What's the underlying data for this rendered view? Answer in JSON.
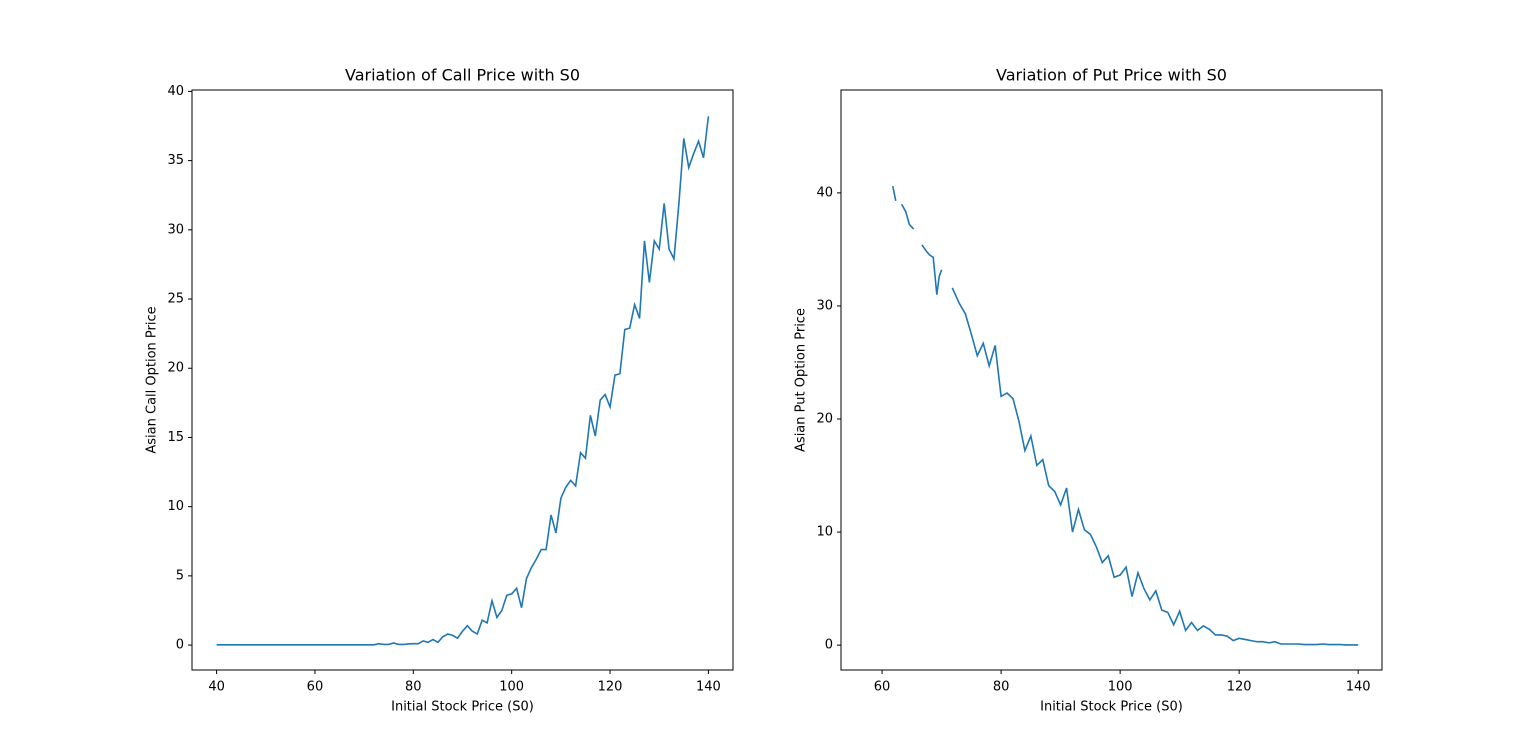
{
  "chart_data": [
    {
      "type": "line",
      "title": "Variation of Call Price with S0",
      "xlabel": "Initial Stock Price (S0)",
      "ylabel": "Asian Call Option Price",
      "x": [
        40,
        41,
        42,
        43,
        44,
        45,
        46,
        47,
        48,
        49,
        50,
        51,
        52,
        53,
        54,
        55,
        56,
        57,
        58,
        59,
        60,
        61,
        62,
        63,
        64,
        65,
        66,
        67,
        68,
        69,
        70,
        71,
        72,
        73,
        74,
        75,
        76,
        77,
        78,
        79,
        80,
        81,
        82,
        83,
        84,
        85,
        86,
        87,
        88,
        89,
        90,
        91,
        92,
        93,
        94,
        95,
        96,
        97,
        98,
        99,
        100,
        101,
        102,
        103,
        104,
        105,
        106,
        107,
        108,
        109,
        110,
        111,
        112,
        113,
        114,
        115,
        116,
        117,
        118,
        119,
        120,
        121,
        122,
        123,
        124,
        125,
        126,
        127,
        128,
        129,
        130,
        131,
        132,
        133,
        134,
        135,
        136,
        137,
        138,
        139,
        140
      ],
      "values": [
        0.02,
        0.02,
        0.02,
        0.02,
        0.02,
        0.02,
        0.02,
        0.02,
        0.02,
        0.02,
        0.02,
        0.02,
        0.02,
        0.02,
        0.02,
        0.02,
        0.02,
        0.02,
        0.02,
        0.02,
        0.02,
        0.02,
        0.02,
        0.02,
        0.02,
        0.02,
        0.02,
        0.02,
        0.02,
        0.02,
        0.02,
        0.02,
        0.02,
        0.1,
        0.05,
        0.05,
        0.15,
        0.05,
        0.05,
        0.08,
        0.1,
        0.1,
        0.3,
        0.2,
        0.4,
        0.2,
        0.6,
        0.8,
        0.7,
        0.5,
        1.0,
        1.4,
        1.0,
        0.8,
        1.8,
        1.6,
        3.2,
        2.0,
        2.5,
        3.6,
        3.7,
        4.1,
        2.7,
        4.8,
        5.6,
        6.2,
        6.9,
        6.9,
        9.4,
        8.1,
        10.6,
        11.4,
        11.9,
        11.5,
        13.9,
        13.5,
        16.6,
        15.1,
        17.7,
        18.1,
        17.2,
        19.5,
        19.6,
        22.8,
        22.9,
        24.6,
        23.6,
        29.2,
        26.2,
        29.2,
        28.6,
        31.9,
        28.6,
        27.9,
        31.9,
        36.6,
        34.5,
        35.5,
        36.4,
        35.2,
        38.2
      ],
      "color": "#1f77b4",
      "xlim": [
        35,
        145
      ],
      "ylim": [
        -1.8,
        40.1
      ],
      "xticks": [
        40,
        60,
        80,
        100,
        120,
        140
      ],
      "yticks": [
        0,
        5,
        10,
        15,
        20,
        25,
        30,
        35,
        40
      ]
    },
    {
      "type": "line",
      "title": "Variation of Put Price with S0",
      "xlabel": "Initial Stock Price (S0)",
      "ylabel": "Asian Put Option Price",
      "x": [
        61.8,
        62.3,
        62.8,
        63.3,
        64,
        64.6,
        65.3,
        66,
        66.7,
        67.5,
        68,
        68.6,
        69.2,
        69.6,
        70,
        71,
        71.8,
        73,
        74,
        75,
        76,
        77,
        78,
        79,
        80,
        81,
        82,
        83,
        84,
        85,
        86,
        87,
        88,
        89,
        90,
        91,
        92,
        93,
        94,
        95,
        96,
        97,
        98,
        99,
        100,
        101,
        102,
        103,
        104,
        105,
        106,
        107,
        108,
        109,
        110,
        111,
        112,
        113,
        114,
        115,
        116,
        117,
        118,
        119,
        120,
        121,
        122,
        123,
        124,
        125,
        126,
        127,
        128,
        129,
        130,
        131,
        132,
        133,
        134,
        135,
        136,
        137,
        138,
        139,
        140
      ],
      "values": [
        40.6,
        39.3,
        null,
        39.0,
        38.3,
        37.2,
        36.8,
        null,
        35.4,
        34.8,
        34.5,
        34.3,
        31.0,
        32.6,
        33.2,
        null,
        31.6,
        30.2,
        29.3,
        27.5,
        25.6,
        26.7,
        24.7,
        26.5,
        22.0,
        22.3,
        21.8,
        19.8,
        17.2,
        18.5,
        15.9,
        16.4,
        14.1,
        13.6,
        12.4,
        13.9,
        10.0,
        12.0,
        10.2,
        9.8,
        8.7,
        7.3,
        7.9,
        6.0,
        6.2,
        6.9,
        4.3,
        6.4,
        5.0,
        4.0,
        4.8,
        3.1,
        2.9,
        1.8,
        3.0,
        1.3,
        2.0,
        1.3,
        1.7,
        1.4,
        0.9,
        0.9,
        0.8,
        0.4,
        0.6,
        0.5,
        0.4,
        0.3,
        0.3,
        0.2,
        0.3,
        0.1,
        0.1,
        0.1,
        0.1,
        0.05,
        0.05,
        0.05,
        0.1,
        0.05,
        0.05,
        0.05,
        0.02,
        0.02,
        0.02
      ],
      "color": "#1f77b4",
      "xlim": [
        53.1,
        144
      ],
      "ylim": [
        -2.2,
        49.1
      ],
      "xticks": [
        60,
        80,
        100,
        120,
        140
      ],
      "yticks": [
        0,
        10,
        20,
        30,
        40
      ]
    }
  ]
}
